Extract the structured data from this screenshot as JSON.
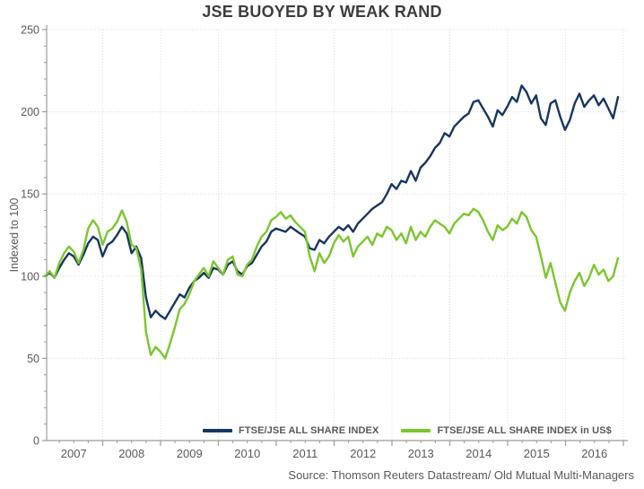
{
  "title": "JSE BUOYED BY WEAK RAND",
  "footer": {
    "source": "Source: Thomson Reuters Datastream/ Old Mutual Multi-Managers"
  },
  "colors": {
    "series_zar": "#17375e",
    "series_usd": "#7cc62f",
    "grid": "#dcdcdc",
    "axis": "#9b9b9b",
    "tick_text": "#595959",
    "title_text": "#3d3d3d"
  },
  "chart_data": {
    "type": "line",
    "title": "JSE BUOYED BY WEAK RAND",
    "xlabel": "",
    "ylabel": "Indexed to 100",
    "ylim": [
      0,
      250
    ],
    "yticks": [
      0,
      50,
      100,
      150,
      200,
      250
    ],
    "y_minor_step": 10,
    "grid": "both, light dotted",
    "legend_position": "bottom-inside",
    "x_years": [
      2007,
      2008,
      2009,
      2010,
      2011,
      2012,
      2013,
      2014,
      2015,
      2016
    ],
    "x_interval": "monthly",
    "x_start": "2007-01",
    "x_end": "2016-12",
    "series": [
      {
        "name": "FTSE/JSE ALL SHARE INDEX",
        "color": "#17375e",
        "values": [
          100,
          102,
          99,
          105,
          110,
          114,
          112,
          107,
          113,
          120,
          124,
          122,
          112,
          119,
          121,
          125,
          130,
          126,
          114,
          118,
          111,
          87,
          75,
          79,
          76,
          74,
          79,
          84,
          89,
          87,
          93,
          97,
          99,
          102,
          99,
          105,
          104,
          101,
          107,
          109,
          103,
          101,
          106,
          108,
          113,
          118,
          121,
          127,
          129,
          128,
          127,
          130,
          128,
          126,
          124,
          117,
          116,
          122,
          120,
          124,
          127,
          130,
          128,
          131,
          127,
          132,
          135,
          138,
          141,
          143,
          145,
          150,
          156,
          153,
          158,
          157,
          164,
          158,
          166,
          169,
          173,
          178,
          181,
          187,
          185,
          191,
          194,
          197,
          199,
          206,
          207,
          202,
          197,
          191,
          201,
          198,
          203,
          209,
          206,
          216,
          212,
          205,
          210,
          196,
          192,
          205,
          207,
          197,
          189,
          195,
          205,
          211,
          203,
          207,
          210,
          204,
          208,
          202,
          196,
          209
        ]
      },
      {
        "name": "FTSE/JSE ALL SHARE INDEX in US$",
        "color": "#7cc62f",
        "values": [
          100,
          103,
          99,
          108,
          114,
          118,
          115,
          108,
          116,
          129,
          134,
          130,
          119,
          127,
          129,
          133,
          140,
          133,
          119,
          117,
          104,
          66,
          52,
          57,
          54,
          50,
          59,
          69,
          80,
          83,
          89,
          97,
          101,
          105,
          100,
          109,
          105,
          101,
          110,
          112,
          101,
          100,
          107,
          110,
          118,
          124,
          127,
          134,
          136,
          139,
          135,
          137,
          133,
          130,
          127,
          112,
          103,
          114,
          108,
          112,
          120,
          125,
          121,
          124,
          112,
          118,
          121,
          124,
          119,
          126,
          124,
          130,
          128,
          122,
          126,
          120,
          130,
          122,
          127,
          124,
          130,
          134,
          132,
          130,
          126,
          132,
          135,
          138,
          137,
          141,
          139,
          134,
          127,
          122,
          131,
          128,
          130,
          135,
          132,
          139,
          136,
          128,
          124,
          112,
          99,
          108,
          96,
          84,
          79,
          90,
          97,
          102,
          94,
          99,
          107,
          101,
          104,
          97,
          100,
          111
        ]
      }
    ]
  }
}
